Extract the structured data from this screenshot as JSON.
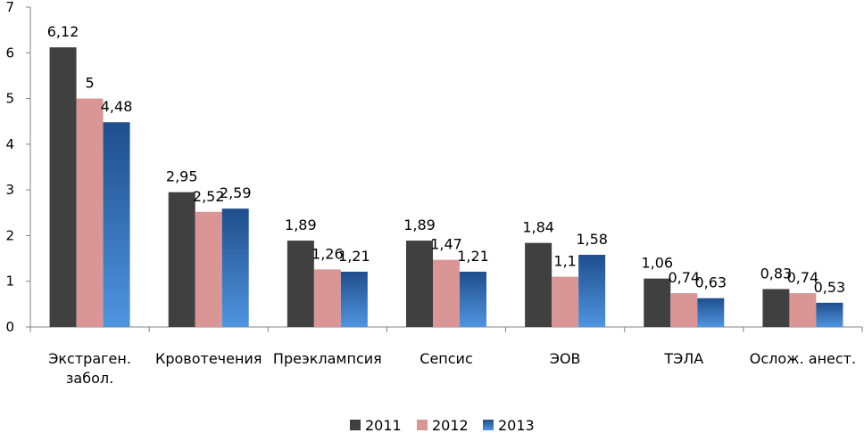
{
  "chart_data": {
    "type": "bar",
    "title": "",
    "xlabel": "",
    "ylabel": "",
    "ylim": [
      0,
      7
    ],
    "yticks": [
      0,
      1,
      2,
      3,
      4,
      5,
      6,
      7
    ],
    "grid": false,
    "legend_position": "bottom",
    "categories": [
      [
        "Экстраген.",
        "забол."
      ],
      [
        "Кровотечения"
      ],
      [
        "Преэклампсия"
      ],
      [
        "Сепсис"
      ],
      [
        "ЭОВ"
      ],
      [
        "ТЭЛА"
      ],
      [
        "Ослож. анест."
      ]
    ],
    "series": [
      {
        "name": "2011",
        "values": [
          6.12,
          2.95,
          1.89,
          1.89,
          1.84,
          1.06,
          0.83
        ],
        "labels": [
          "6,12",
          "2,95",
          "1,89",
          "1,89",
          "1,84",
          "1,06",
          "0,83"
        ],
        "color": "#404040",
        "color_light": "#404040"
      },
      {
        "name": "2012",
        "values": [
          5,
          2.52,
          1.26,
          1.47,
          1.1,
          0.74,
          0.74
        ],
        "labels": [
          "5",
          "2,52",
          "1,26",
          "1,47",
          "1,1",
          "0,74",
          "0,74"
        ],
        "color": "#d99694",
        "color_light": "#d99694"
      },
      {
        "name": "2013",
        "values": [
          4.48,
          2.59,
          1.21,
          1.21,
          1.58,
          0.63,
          0.53
        ],
        "labels": [
          "4,48",
          "2,59",
          "1,21",
          "1,21",
          "1,58",
          "0,63",
          "0,53"
        ],
        "color": "#1f4e8c",
        "color_light": "#4f95e0"
      }
    ]
  }
}
